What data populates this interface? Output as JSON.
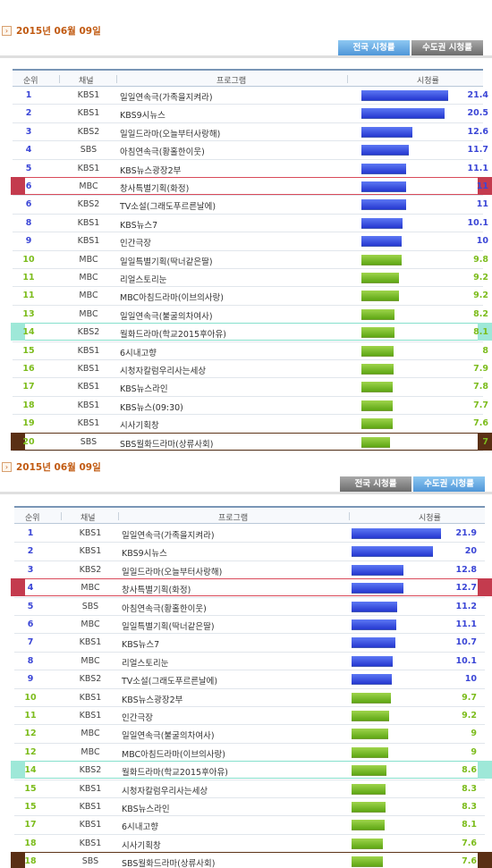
{
  "panels": [
    {
      "date": "2015년 06월 09일",
      "tabs": [
        {
          "label": "전국 시청률",
          "active": true
        },
        {
          "label": "수도권 시청률",
          "active": false
        }
      ],
      "headers": {
        "rank": "순위",
        "channel": "채널",
        "program": "프로그램",
        "rating": "시청률"
      },
      "rows": [
        {
          "rank": "1",
          "channel": "KBS1",
          "program": "일일연속극(가족을지켜라)",
          "rating": "21.4",
          "color": "blue"
        },
        {
          "rank": "2",
          "channel": "KBS1",
          "program": "KBS9시뉴스",
          "rating": "20.5",
          "color": "blue"
        },
        {
          "rank": "3",
          "channel": "KBS2",
          "program": "일일드라마(오늘부터사랑해)",
          "rating": "12.6",
          "color": "blue"
        },
        {
          "rank": "4",
          "channel": "SBS",
          "program": "아침연속극(황홀한이웃)",
          "rating": "11.7",
          "color": "blue"
        },
        {
          "rank": "5",
          "channel": "KBS1",
          "program": "KBS뉴스광장2부",
          "rating": "11.1",
          "color": "blue"
        },
        {
          "rank": "6",
          "channel": "MBC",
          "program": "창사특별기획(화정)",
          "rating": "11",
          "color": "blue",
          "highlight": "red"
        },
        {
          "rank": "6",
          "channel": "KBS2",
          "program": "TV소설(그래도푸르른날에)",
          "rating": "11",
          "color": "blue"
        },
        {
          "rank": "8",
          "channel": "KBS1",
          "program": "KBS뉴스7",
          "rating": "10.1",
          "color": "blue"
        },
        {
          "rank": "9",
          "channel": "KBS1",
          "program": "인간극장",
          "rating": "10",
          "color": "blue"
        },
        {
          "rank": "10",
          "channel": "MBC",
          "program": "일일특별기획(딱너같은딸)",
          "rating": "9.8",
          "color": "green"
        },
        {
          "rank": "11",
          "channel": "MBC",
          "program": "리얼스토리눈",
          "rating": "9.2",
          "color": "green"
        },
        {
          "rank": "11",
          "channel": "MBC",
          "program": "MBC아침드라마(이브의사랑)",
          "rating": "9.2",
          "color": "green"
        },
        {
          "rank": "13",
          "channel": "MBC",
          "program": "일일연속극(불굴의차여사)",
          "rating": "8.2",
          "color": "green"
        },
        {
          "rank": "14",
          "channel": "KBS2",
          "program": "월화드라마(학교2015후아유)",
          "rating": "8.1",
          "color": "green",
          "highlight": "mint"
        },
        {
          "rank": "15",
          "channel": "KBS1",
          "program": "6시내고향",
          "rating": "8",
          "color": "green"
        },
        {
          "rank": "16",
          "channel": "KBS1",
          "program": "시청자칼럼우리사는세상",
          "rating": "7.9",
          "color": "green"
        },
        {
          "rank": "17",
          "channel": "KBS1",
          "program": "KBS뉴스라인",
          "rating": "7.8",
          "color": "green"
        },
        {
          "rank": "18",
          "channel": "KBS1",
          "program": "KBS뉴스(09:30)",
          "rating": "7.7",
          "color": "green"
        },
        {
          "rank": "19",
          "channel": "KBS1",
          "program": "시사기획창",
          "rating": "7.6",
          "color": "green"
        },
        {
          "rank": "20",
          "channel": "SBS",
          "program": "SBS월화드라마(상류사회)",
          "rating": "7",
          "color": "green",
          "highlight": "brown"
        }
      ]
    },
    {
      "date": "2015년 06월 09일",
      "tabs": [
        {
          "label": "전국 시청률",
          "active": false
        },
        {
          "label": "수도권 시청률",
          "active": true
        }
      ],
      "headers": {
        "rank": "순위",
        "channel": "채널",
        "program": "프로그램",
        "rating": "시청률"
      },
      "rows": [
        {
          "rank": "1",
          "channel": "KBS1",
          "program": "일일연속극(가족을지켜라)",
          "rating": "21.9",
          "color": "blue"
        },
        {
          "rank": "2",
          "channel": "KBS1",
          "program": "KBS9시뉴스",
          "rating": "20",
          "color": "blue"
        },
        {
          "rank": "3",
          "channel": "KBS2",
          "program": "일일드라마(오늘부터사랑해)",
          "rating": "12.8",
          "color": "blue"
        },
        {
          "rank": "4",
          "channel": "MBC",
          "program": "창사특별기획(화정)",
          "rating": "12.7",
          "color": "blue",
          "highlight": "red"
        },
        {
          "rank": "5",
          "channel": "SBS",
          "program": "아침연속극(황홀한이웃)",
          "rating": "11.2",
          "color": "blue"
        },
        {
          "rank": "6",
          "channel": "MBC",
          "program": "일일특별기획(딱너같은딸)",
          "rating": "11.1",
          "color": "blue"
        },
        {
          "rank": "7",
          "channel": "KBS1",
          "program": "KBS뉴스7",
          "rating": "10.7",
          "color": "blue"
        },
        {
          "rank": "8",
          "channel": "MBC",
          "program": "리얼스토리눈",
          "rating": "10.1",
          "color": "blue"
        },
        {
          "rank": "9",
          "channel": "KBS2",
          "program": "TV소설(그래도푸르른날에)",
          "rating": "10",
          "color": "blue"
        },
        {
          "rank": "10",
          "channel": "KBS1",
          "program": "KBS뉴스광장2부",
          "rating": "9.7",
          "color": "green"
        },
        {
          "rank": "11",
          "channel": "KBS1",
          "program": "인간극장",
          "rating": "9.2",
          "color": "green"
        },
        {
          "rank": "12",
          "channel": "MBC",
          "program": "일일연속극(불굴의차여사)",
          "rating": "9",
          "color": "green"
        },
        {
          "rank": "12",
          "channel": "MBC",
          "program": "MBC아침드라마(이브의사랑)",
          "rating": "9",
          "color": "green"
        },
        {
          "rank": "14",
          "channel": "KBS2",
          "program": "월화드라마(학교2015후아유)",
          "rating": "8.6",
          "color": "green",
          "highlight": "mint"
        },
        {
          "rank": "15",
          "channel": "KBS1",
          "program": "시청자칼럼우리사는세상",
          "rating": "8.3",
          "color": "green"
        },
        {
          "rank": "15",
          "channel": "KBS1",
          "program": "KBS뉴스라인",
          "rating": "8.3",
          "color": "green"
        },
        {
          "rank": "17",
          "channel": "KBS1",
          "program": "6시내고향",
          "rating": "8.1",
          "color": "green"
        },
        {
          "rank": "18",
          "channel": "KBS1",
          "program": "시사기획창",
          "rating": "7.6",
          "color": "green"
        },
        {
          "rank": "18",
          "channel": "SBS",
          "program": "SBS월화드라마(상류사회)",
          "rating": "7.6",
          "color": "green",
          "highlight": "brown"
        }
      ]
    }
  ]
}
